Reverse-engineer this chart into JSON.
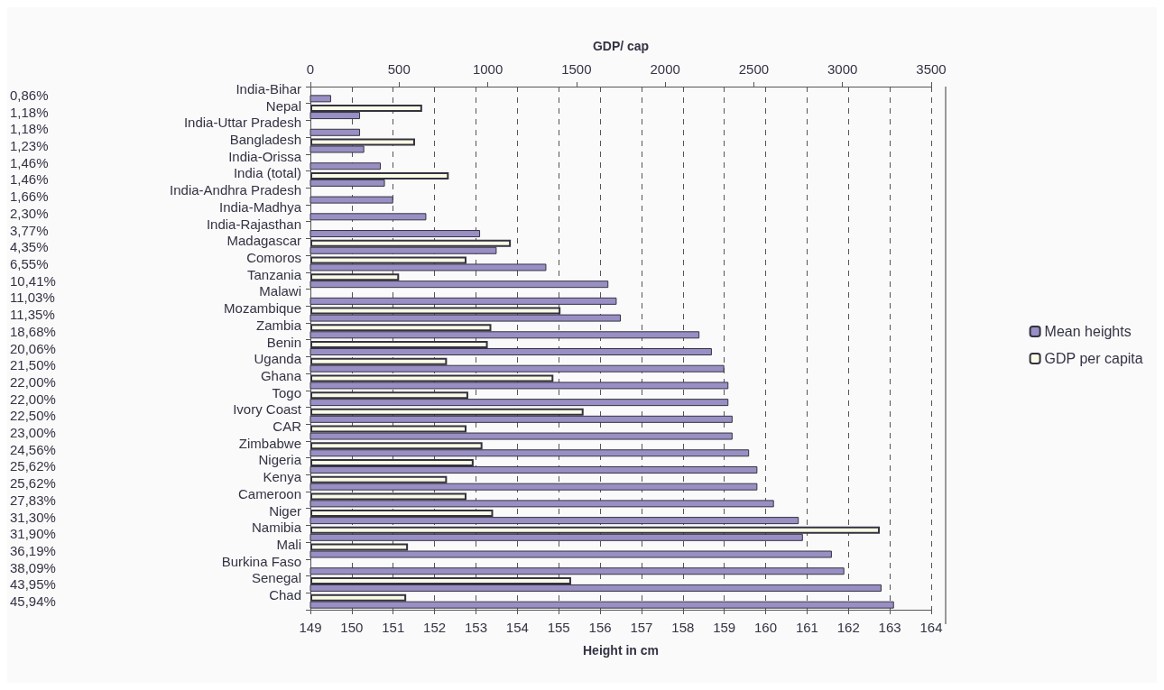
{
  "chart_data": {
    "type": "bar",
    "orientation": "horizontal",
    "xlabel": "Height in cm",
    "x2label": "GDP/ cap",
    "categories": [
      "India-Bihar",
      "Nepal",
      "India-Uttar Pradesh",
      "Bangladesh",
      "India-Orissa",
      "India (total)",
      "India-Andhra Pradesh",
      "India-Madhya",
      "India-Rajasthan",
      "Madagascar",
      "Comoros",
      "Tanzania",
      "Malawi",
      "Mozambique",
      "Zambia",
      "Benin",
      "Uganda",
      "Ghana",
      "Togo",
      "Ivory Coast",
      "CAR",
      "Zimbabwe",
      "Nigeria",
      "Kenya",
      "Cameroon",
      "Niger",
      "Namibia",
      "Mali",
      "Burkina Faso",
      "Senegal",
      "Chad"
    ],
    "y2_categories": [
      "0,86%",
      "1,18%",
      "1,18%",
      "1,23%",
      "1,46%",
      "1,46%",
      "1,66%",
      "2,30%",
      "3,77%",
      "4,35%",
      "6,55%",
      "10,41%",
      "11,03%",
      "11,35%",
      "18,68%",
      "20,06%",
      "21,50%",
      "22,00%",
      "22,00%",
      "22,50%",
      "23,00%",
      "24,56%",
      "25,62%",
      "25,62%",
      "27,83%",
      "31,30%",
      "31,90%",
      "36,19%",
      "38,09%",
      "43,95%",
      "45,94%"
    ],
    "series": [
      {
        "name": "Mean heights",
        "color": "#9a8fc4",
        "values": [
          149.5,
          150.2,
          150.2,
          150.3,
          150.7,
          150.8,
          151.0,
          151.8,
          153.1,
          153.5,
          154.7,
          156.2,
          156.4,
          156.5,
          158.4,
          158.7,
          159.0,
          159.1,
          159.1,
          159.2,
          159.2,
          159.6,
          159.8,
          159.8,
          160.2,
          160.8,
          160.9,
          161.6,
          161.9,
          162.8,
          163.1
        ]
      },
      {
        "name": "GDP per capita",
        "color": "#fafae6",
        "axis": "x2",
        "values": [
          null,
          630,
          null,
          590,
          null,
          780,
          null,
          null,
          null,
          1130,
          880,
          500,
          null,
          1410,
          1020,
          1000,
          770,
          1370,
          890,
          1540,
          880,
          970,
          920,
          770,
          880,
          1030,
          3210,
          550,
          null,
          1470,
          540
        ]
      }
    ],
    "xlim": [
      149,
      164
    ],
    "xticks": [
      149,
      150,
      151,
      152,
      153,
      154,
      155,
      156,
      157,
      158,
      159,
      160,
      161,
      162,
      163,
      164
    ],
    "x2lim": [
      0,
      3500
    ],
    "x2ticks": [
      0,
      500,
      1000,
      1500,
      2000,
      2500,
      3000,
      3500
    ],
    "grid": "x",
    "legend": "right"
  }
}
